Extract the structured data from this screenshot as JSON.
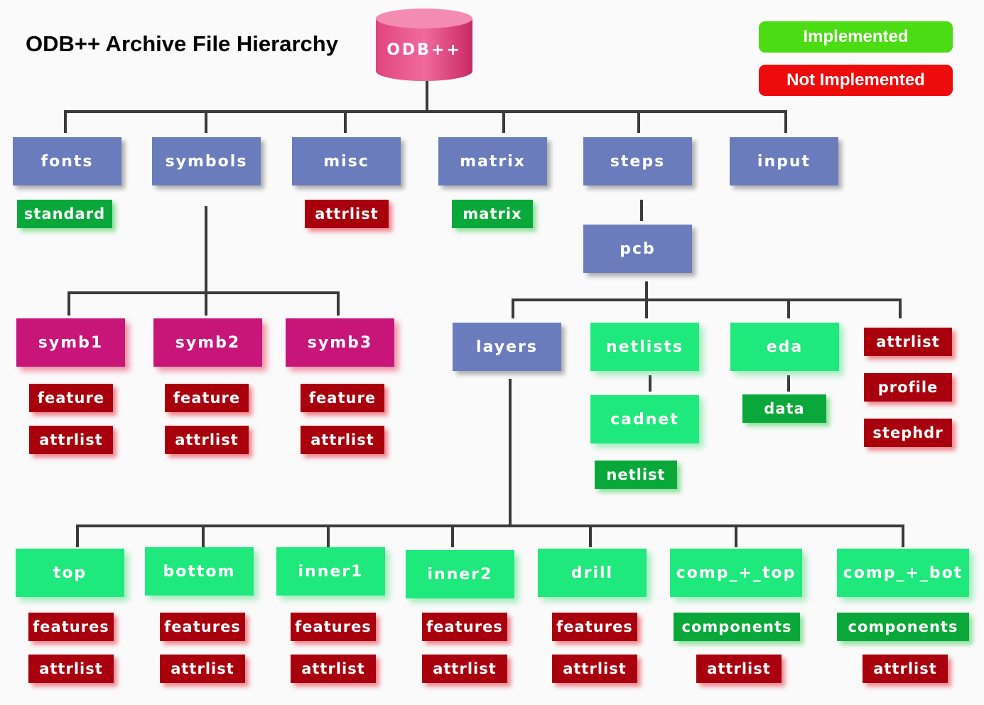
{
  "title": "ODB++ Archive File Hierarchy",
  "root": {
    "label": "ODB++"
  },
  "legend": {
    "implemented": {
      "label": "Implemented",
      "color": "#4cdc14"
    },
    "not_implemented": {
      "label": "Not Implemented",
      "color": "#ee0b0b"
    }
  },
  "level1": {
    "fonts": "fonts",
    "symbols": "symbols",
    "misc": "misc",
    "matrix": "matrix",
    "steps": "steps",
    "input": "input"
  },
  "fonts_children": {
    "standard": "standard"
  },
  "misc_children": {
    "attrlist": "attrlist"
  },
  "matrix_children": {
    "matrix": "matrix"
  },
  "symbols_children": [
    {
      "name": "symb1",
      "children": [
        "feature",
        "attrlist"
      ]
    },
    {
      "name": "symb2",
      "children": [
        "feature",
        "attrlist"
      ]
    },
    {
      "name": "symb3",
      "children": [
        "feature",
        "attrlist"
      ]
    }
  ],
  "steps_children": {
    "pcb": "pcb"
  },
  "pcb_children": {
    "layers": "layers",
    "netlists": "netlists",
    "eda": "eda",
    "attrlist": "attrlist",
    "profile": "profile",
    "stephdr": "stephdr"
  },
  "netlists_children": {
    "cadnet": "cadnet",
    "netlist": "netlist"
  },
  "eda_children": {
    "data": "data"
  },
  "layers_children": [
    {
      "name": "top",
      "children": [
        "features",
        "attrlist"
      ]
    },
    {
      "name": "bottom",
      "children": [
        "features",
        "attrlist"
      ]
    },
    {
      "name": "inner1",
      "children": [
        "features",
        "attrlist"
      ]
    },
    {
      "name": "inner2",
      "children": [
        "features",
        "attrlist"
      ]
    },
    {
      "name": "drill",
      "children": [
        "features",
        "attrlist"
      ]
    },
    {
      "name": "comp_+_top",
      "children": [
        "components",
        "attrlist"
      ]
    },
    {
      "name": "comp_+_bot",
      "children": [
        "components",
        "attrlist"
      ]
    }
  ]
}
